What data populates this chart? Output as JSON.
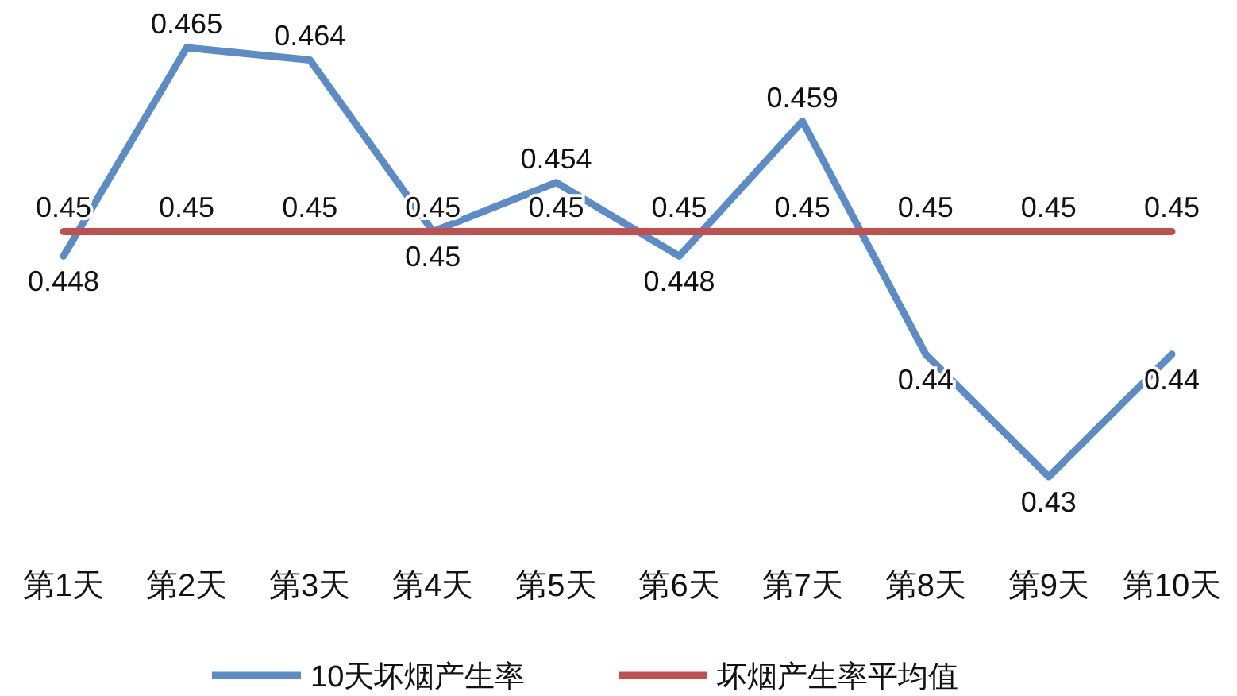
{
  "chart_data": {
    "type": "line",
    "categories": [
      "第1天",
      "第2天",
      "第3天",
      "第4天",
      "第5天",
      "第6天",
      "第7天",
      "第8天",
      "第9天",
      "第10天"
    ],
    "series": [
      {
        "name": "10天坏烟产生率",
        "color": "#5b8cc8",
        "values": [
          0.448,
          0.465,
          0.464,
          0.45,
          0.454,
          0.448,
          0.459,
          0.44,
          0.43,
          0.44
        ]
      },
      {
        "name": "坏烟产生率平均值",
        "color": "#c0504d",
        "values": [
          0.45,
          0.45,
          0.45,
          0.45,
          0.45,
          0.45,
          0.45,
          0.45,
          0.45,
          0.45
        ]
      }
    ],
    "data_labels": true,
    "legend": "bottom",
    "marker": "none",
    "line_style": "solid"
  }
}
